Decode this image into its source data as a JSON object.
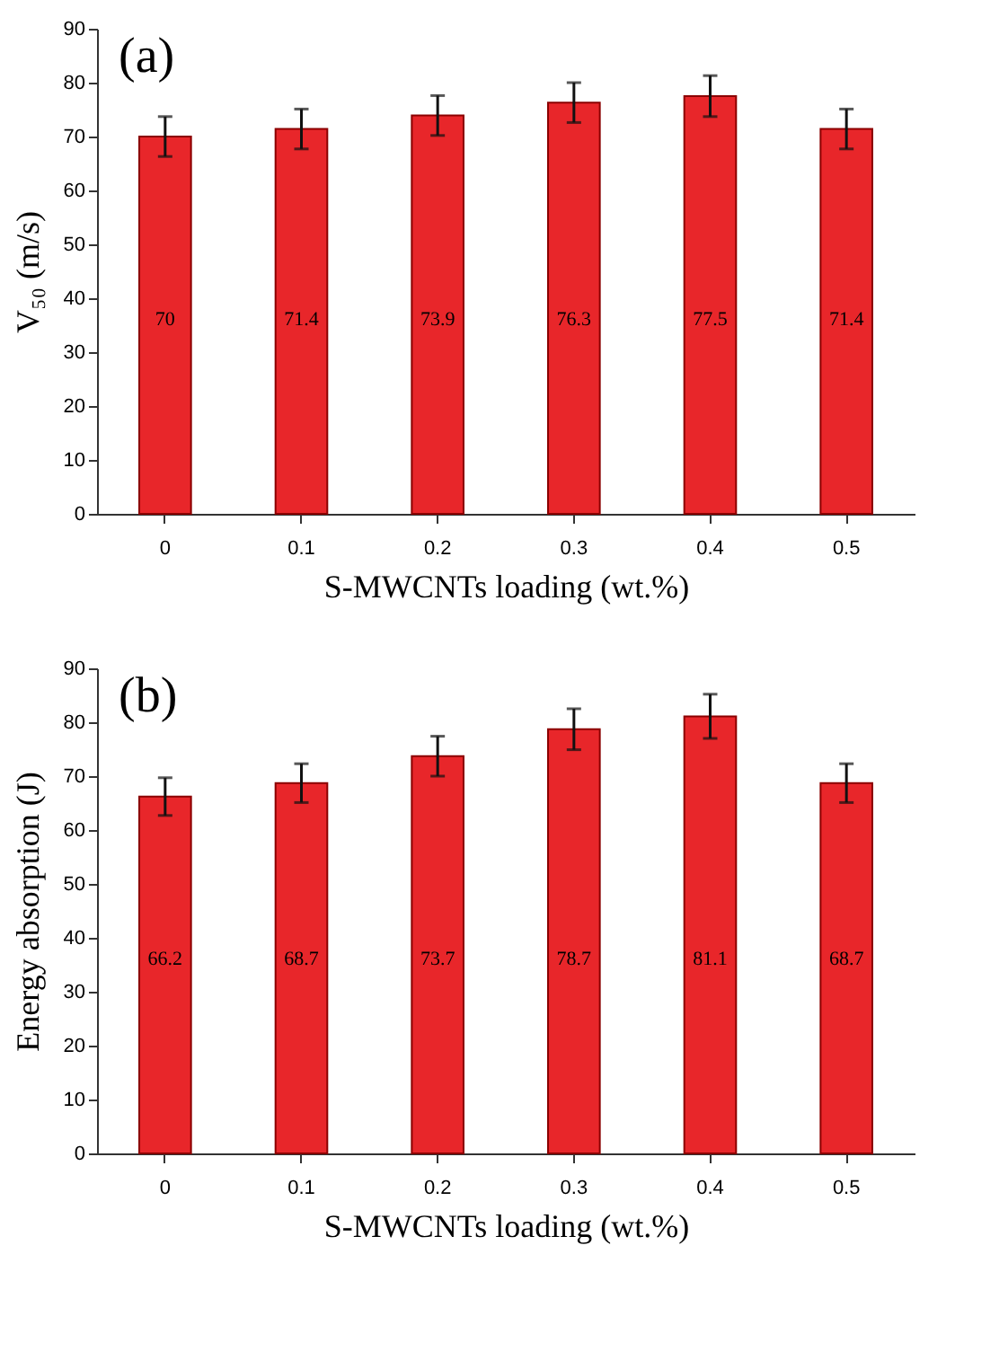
{
  "chart_data": [
    {
      "type": "bar",
      "categories": [
        "0",
        "0.1",
        "0.2",
        "0.3",
        "0.4",
        "0.5"
      ],
      "values": [
        70,
        71.4,
        73.9,
        76.3,
        77.5,
        71.4
      ],
      "errors": [
        3.7,
        3.7,
        3.7,
        3.7,
        3.8,
        3.7
      ],
      "color": "#e8262a",
      "data_labels": true,
      "xlabel": "S-MWCNTs loading (wt.%)",
      "ylabel": "V₅₀ (m/s)",
      "ylim": [
        0,
        90
      ],
      "yticks": [
        0,
        10,
        20,
        30,
        40,
        50,
        60,
        70,
        80,
        90
      ],
      "grid": false,
      "annotations": [
        "(a)"
      ]
    },
    {
      "type": "bar",
      "categories": [
        "0",
        "0.1",
        "0.2",
        "0.3",
        "0.4",
        "0.5"
      ],
      "values": [
        66.2,
        68.7,
        73.7,
        78.7,
        81.1,
        68.7
      ],
      "errors": [
        3.5,
        3.6,
        3.7,
        3.8,
        4.1,
        3.6
      ],
      "color": "#e8262a",
      "data_labels": true,
      "xlabel": "S-MWCNTs loading (wt.%)",
      "ylabel": "Energy absorption (J)",
      "ylim": [
        0,
        90
      ],
      "yticks": [
        0,
        10,
        20,
        30,
        40,
        50,
        60,
        70,
        80,
        90
      ],
      "grid": false,
      "annotations": [
        "(b)"
      ]
    }
  ]
}
